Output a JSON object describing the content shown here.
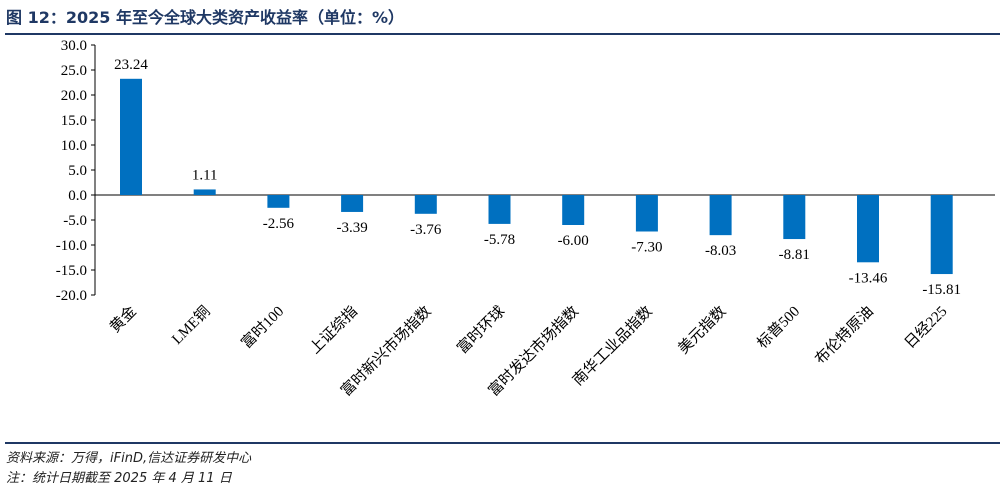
{
  "title": "图 12：2025 年至今全球大类资产收益率（单位：%）",
  "source": "资料来源：万得，iFinD,信达证券研发中心",
  "note": "注：统计日期截至 2025 年 4 月 11 日",
  "chart_data": {
    "type": "bar",
    "categories": [
      "黄金",
      "LME铜",
      "富时100",
      "上证综指",
      "富时新兴市场指数",
      "富时环球",
      "富时发达市场指数",
      "南华工业品指数",
      "美元指数",
      "标普500",
      "布伦特原油",
      "日经225"
    ],
    "values": [
      23.24,
      1.11,
      -2.56,
      -3.39,
      -3.76,
      -5.78,
      -6.0,
      -7.3,
      -8.03,
      -8.81,
      -13.46,
      -15.81
    ],
    "data_labels": [
      "23.24",
      "1.11",
      "-2.56",
      "-3.39",
      "-3.76",
      "-5.78",
      "-6.00",
      "-7.30",
      "-8.03",
      "-8.81",
      "-13.46",
      "-15.81"
    ],
    "ylim": [
      -20,
      30
    ],
    "yticks": [
      "30.0",
      "25.0",
      "20.0",
      "15.0",
      "10.0",
      "5.0",
      "0.0",
      "-5.0",
      "-10.0",
      "-15.0",
      "-20.0"
    ],
    "grid": false,
    "bar_color": "#0070c0"
  }
}
